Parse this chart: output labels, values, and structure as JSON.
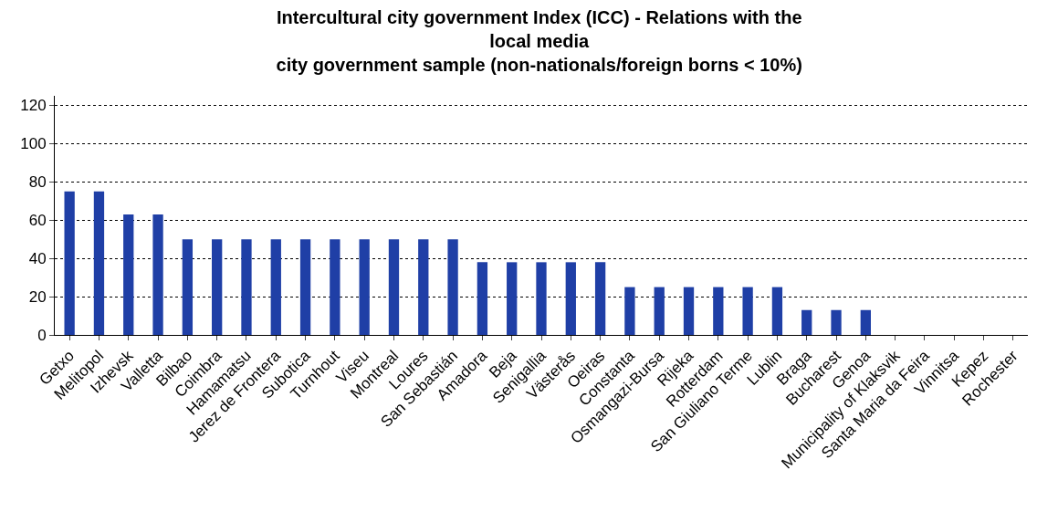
{
  "chart_data": {
    "type": "bar",
    "title": "Intercultural city government Index (ICC) - Relations with the  local media",
    "subtitle": "city government sample (non-nationals/foreign borns < 10%)",
    "categories": [
      "Getxo",
      "Melitopol",
      "Izhevsk",
      "Valletta",
      "Bilbao",
      "Coimbra",
      "Hamamatsu",
      "Jerez de Frontera",
      "Subotica",
      "Turnhout",
      "Viseu",
      "Montreal",
      "Loures",
      "San Sebastián",
      "Amadora",
      "Beja",
      "Senigallia",
      "Västerås",
      "Oeiras",
      "Constanta",
      "Osmangazi-Bursa",
      "Rijeka",
      "Rotterdam",
      "San Giuliano Terme",
      "Lublin",
      "Braga",
      "Bucharest",
      "Genoa",
      "Municipality of Klaksvik",
      "Santa Maria da Feira",
      "Vinnitsa",
      "Kepez",
      "Rochester"
    ],
    "values": [
      75,
      75,
      63,
      63,
      50,
      50,
      50,
      50,
      50,
      50,
      50,
      50,
      50,
      50,
      38,
      38,
      38,
      38,
      38,
      25,
      25,
      25,
      25,
      25,
      25,
      13,
      13,
      13,
      0,
      0,
      0,
      0,
      0
    ],
    "color": "#1f3fa6",
    "ylim": [
      0,
      125
    ],
    "yticks": [
      0,
      20,
      40,
      60,
      80,
      100,
      120
    ],
    "grid": "y"
  }
}
